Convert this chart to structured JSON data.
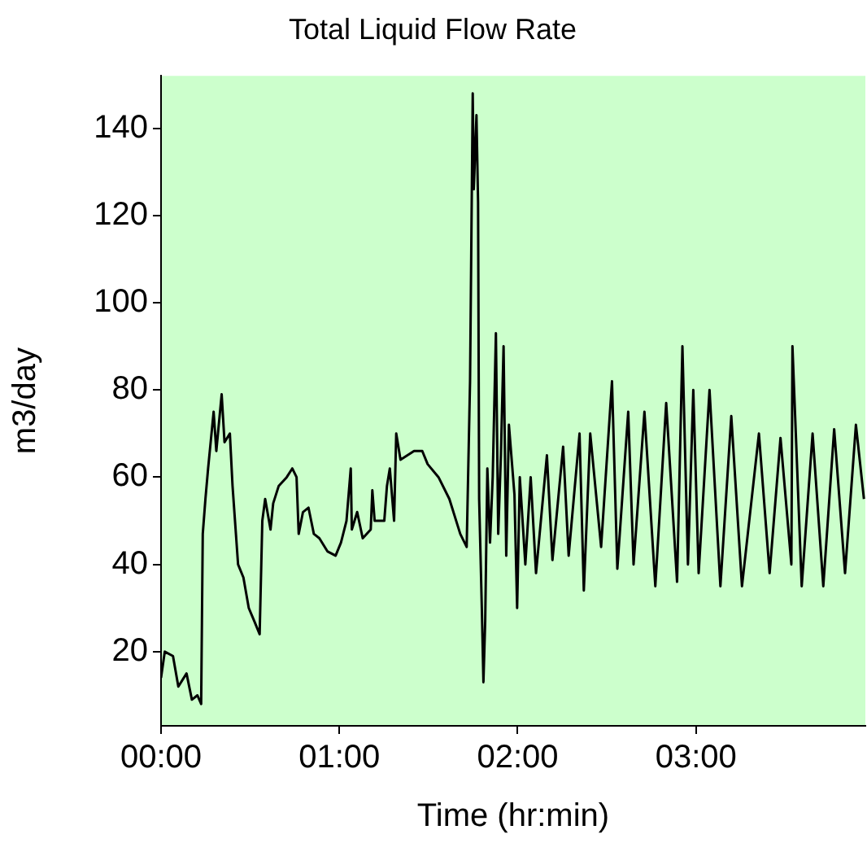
{
  "chart_data": {
    "type": "line",
    "title": "Total Liquid Flow Rate",
    "xlabel": "Time (hr:min)",
    "ylabel": "m3/day",
    "x": [
      0,
      0.021,
      0.067,
      0.097,
      0.143,
      0.173,
      0.204,
      0.225,
      0.234,
      0.249,
      0.264,
      0.295,
      0.31,
      0.34,
      0.356,
      0.386,
      0.401,
      0.432,
      0.462,
      0.492,
      0.523,
      0.553,
      0.568,
      0.584,
      0.614,
      0.629,
      0.66,
      0.705,
      0.736,
      0.76,
      0.772,
      0.796,
      0.827,
      0.857,
      0.888,
      0.933,
      0.979,
      1.009,
      1.04,
      1.064,
      1.07,
      1.1,
      1.131,
      1.176,
      1.185,
      1.198,
      1.252,
      1.267,
      1.283,
      1.307,
      1.319,
      1.343,
      1.419,
      1.465,
      1.495,
      1.556,
      1.617,
      1.678,
      1.714,
      1.733,
      1.748,
      1.754,
      1.769,
      1.778,
      1.784,
      1.799,
      1.808,
      1.818,
      1.83,
      1.845,
      1.86,
      1.878,
      1.891,
      1.906,
      1.921,
      1.936,
      1.951,
      1.982,
      1.997,
      2.012,
      2.043,
      2.073,
      2.103,
      2.164,
      2.195,
      2.255,
      2.286,
      2.347,
      2.371,
      2.407,
      2.468,
      2.529,
      2.559,
      2.62,
      2.65,
      2.711,
      2.772,
      2.833,
      2.894,
      2.924,
      2.955,
      2.985,
      3.015,
      3.076,
      3.137,
      3.198,
      3.258,
      3.353,
      3.413,
      3.474,
      3.535,
      3.541,
      3.593,
      3.654,
      3.714,
      3.775,
      3.836,
      3.897,
      3.942
    ],
    "series": [
      {
        "color": "#000000",
        "values": [
          14,
          20,
          19,
          12,
          15,
          9,
          10,
          8,
          47,
          55,
          62,
          75,
          66,
          79,
          68,
          70,
          58,
          40,
          37,
          30,
          27,
          24,
          50,
          55,
          48,
          54,
          58,
          60,
          62,
          60,
          47,
          52,
          53,
          47,
          46,
          43,
          42,
          45,
          50,
          62,
          48,
          52,
          46,
          48,
          57,
          50,
          50,
          58,
          62,
          50,
          70,
          64,
          66,
          66,
          63,
          60,
          55,
          47,
          44,
          82,
          148,
          126,
          143,
          123,
          55,
          30,
          13,
          27,
          62,
          45,
          60,
          93,
          47,
          65,
          90,
          42,
          72,
          56,
          30,
          60,
          40,
          60,
          38,
          65,
          41,
          67,
          42,
          70,
          34,
          70,
          44,
          82,
          39,
          75,
          40,
          75,
          35,
          77,
          36,
          90,
          40,
          80,
          38,
          80,
          35,
          74,
          35,
          70,
          38,
          69,
          40,
          90,
          35,
          70,
          35,
          71,
          38,
          72,
          55
        ]
      }
    ],
    "xlim": [
      0,
      3.95
    ],
    "ylim": [
      3,
      152
    ],
    "xticks": [
      {
        "value": 0,
        "label": "00:00"
      },
      {
        "value": 1,
        "label": "01:00"
      },
      {
        "value": 2,
        "label": "02:00"
      },
      {
        "value": 3,
        "label": "03:00"
      }
    ],
    "yticks": [
      20,
      40,
      60,
      80,
      100,
      120,
      140
    ]
  }
}
